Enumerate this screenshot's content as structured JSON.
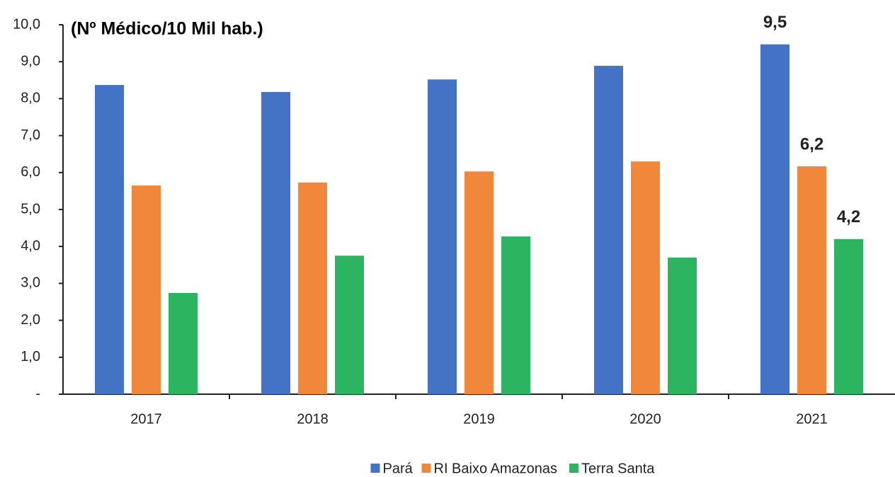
{
  "chart_data": {
    "type": "bar",
    "title": "(Nº Médico/10 Mil hab.)",
    "categories": [
      "2017",
      "2018",
      "2019",
      "2020",
      "2021"
    ],
    "series": [
      {
        "name": "Pará",
        "color": "#4472c4",
        "values": [
          8.37,
          8.18,
          8.52,
          8.89,
          9.47
        ],
        "value_labels": [
          null,
          null,
          null,
          null,
          "9,5"
        ]
      },
      {
        "name": "RI Baixo Amazonas",
        "color": "#f0873a",
        "values": [
          5.65,
          5.73,
          6.03,
          6.3,
          6.17
        ],
        "value_labels": [
          null,
          null,
          null,
          null,
          "6,2"
        ]
      },
      {
        "name": "Terra Santa",
        "color": "#2db460",
        "values": [
          2.74,
          3.75,
          4.27,
          3.7,
          4.2
        ],
        "value_labels": [
          null,
          null,
          null,
          null,
          "4,2"
        ]
      }
    ],
    "ylim": [
      0,
      10
    ],
    "yticks": [
      {
        "value": 0,
        "label": "-"
      },
      {
        "value": 1,
        "label": "1,0"
      },
      {
        "value": 2,
        "label": "2,0"
      },
      {
        "value": 3,
        "label": "3,0"
      },
      {
        "value": 4,
        "label": "4,0"
      },
      {
        "value": 5,
        "label": "5,0"
      },
      {
        "value": 6,
        "label": "6,0"
      },
      {
        "value": 7,
        "label": "7,0"
      },
      {
        "value": 8,
        "label": "8,0"
      },
      {
        "value": 9,
        "label": "9,0"
      },
      {
        "value": 10,
        "label": "10,0"
      }
    ],
    "grid": false,
    "legend": "bottom"
  }
}
